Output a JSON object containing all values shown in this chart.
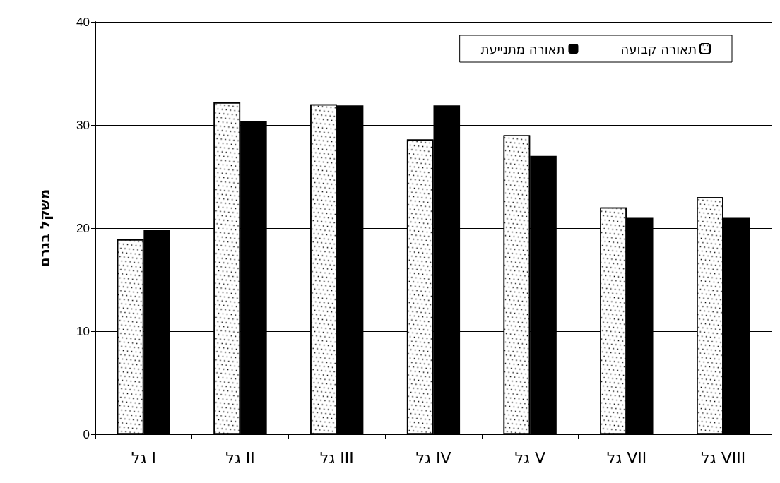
{
  "chart_data": {
    "type": "bar",
    "ylabel": "משקל בגרם",
    "categories": [
      "גל I",
      "גל II",
      "גל III",
      "גל IV",
      "גל V",
      "גל VII",
      "גל VIII"
    ],
    "series": [
      {
        "name": "תאורה קבועה",
        "color": "#ffffff",
        "values": [
          18.9,
          32.2,
          32.0,
          28.6,
          29.0,
          22.0,
          23.0
        ]
      },
      {
        "name": "תאורה מתנייעת",
        "color": "#000000",
        "values": [
          19.8,
          30.4,
          31.9,
          31.9,
          27.0,
          21.0,
          21.0
        ]
      }
    ],
    "ylim": [
      0,
      40
    ],
    "yticks": [
      0,
      10,
      20,
      30,
      40
    ],
    "grid": "y",
    "legend": "top right"
  }
}
